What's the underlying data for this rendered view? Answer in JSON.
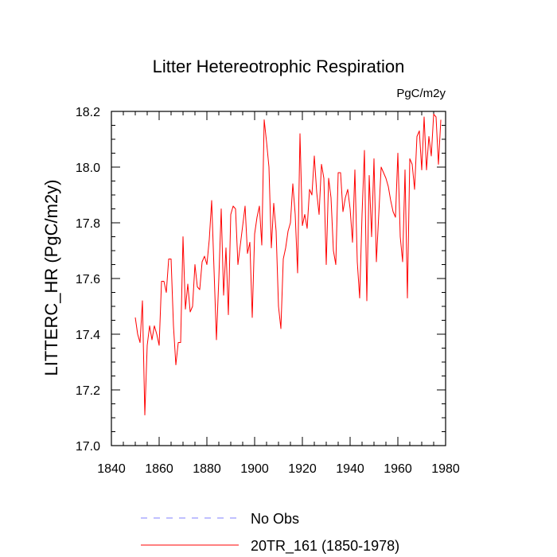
{
  "chart_data": {
    "type": "line",
    "title": "Litter Hetereotrophic Respiration",
    "units_label": "PgC/m2y",
    "xlabel": "",
    "ylabel": "LITTERC_HR  (PgC/m2y)",
    "xlim": [
      1840,
      1980
    ],
    "ylim": [
      17.0,
      18.2
    ],
    "x_ticks": [
      1840,
      1860,
      1880,
      1900,
      1920,
      1940,
      1960,
      1980
    ],
    "y_ticks": [
      17.0,
      17.2,
      17.4,
      17.6,
      17.8,
      18.0,
      18.2
    ],
    "x_minor_step": 5,
    "y_minor_step": 0.05,
    "grid": false,
    "legend_position": "bottom-center",
    "series": [
      {
        "name": "No Obs",
        "style": "dashed",
        "color": "#8080ff",
        "x": [],
        "values": []
      },
      {
        "name": "20TR_161 (1850-1978)",
        "style": "solid",
        "color": "#ff0000",
        "x": [
          1850,
          1851,
          1852,
          1853,
          1854,
          1855,
          1856,
          1857,
          1858,
          1859,
          1860,
          1861,
          1862,
          1863,
          1864,
          1865,
          1866,
          1867,
          1868,
          1869,
          1870,
          1871,
          1872,
          1873,
          1874,
          1875,
          1876,
          1877,
          1878,
          1879,
          1880,
          1881,
          1882,
          1883,
          1884,
          1885,
          1886,
          1887,
          1888,
          1889,
          1890,
          1891,
          1892,
          1893,
          1894,
          1895,
          1896,
          1897,
          1898,
          1899,
          1900,
          1901,
          1902,
          1903,
          1904,
          1905,
          1906,
          1907,
          1908,
          1909,
          1910,
          1911,
          1912,
          1913,
          1914,
          1915,
          1916,
          1917,
          1918,
          1919,
          1920,
          1921,
          1922,
          1923,
          1924,
          1925,
          1926,
          1927,
          1928,
          1929,
          1930,
          1931,
          1932,
          1933,
          1934,
          1935,
          1936,
          1937,
          1938,
          1939,
          1940,
          1941,
          1942,
          1943,
          1944,
          1945,
          1946,
          1947,
          1948,
          1949,
          1950,
          1951,
          1952,
          1953,
          1954,
          1955,
          1956,
          1957,
          1958,
          1959,
          1960,
          1961,
          1962,
          1963,
          1964,
          1965,
          1966,
          1967,
          1968,
          1969,
          1970,
          1971,
          1972,
          1973,
          1974,
          1975,
          1976,
          1977,
          1978
        ],
        "values": [
          17.46,
          17.4,
          17.37,
          17.52,
          17.11,
          17.36,
          17.43,
          17.38,
          17.43,
          17.4,
          17.36,
          17.59,
          17.59,
          17.55,
          17.67,
          17.67,
          17.43,
          17.29,
          17.37,
          17.37,
          17.75,
          17.49,
          17.58,
          17.48,
          17.5,
          17.65,
          17.57,
          17.56,
          17.66,
          17.68,
          17.65,
          17.74,
          17.88,
          17.63,
          17.38,
          17.6,
          17.85,
          17.54,
          17.71,
          17.47,
          17.83,
          17.86,
          17.85,
          17.65,
          17.72,
          17.79,
          17.86,
          17.69,
          17.73,
          17.46,
          17.76,
          17.82,
          17.86,
          17.72,
          18.17,
          18.09,
          18.0,
          17.71,
          17.87,
          17.77,
          17.5,
          17.42,
          17.67,
          17.71,
          17.77,
          17.8,
          17.94,
          17.83,
          17.62,
          18.12,
          17.79,
          17.83,
          17.78,
          17.92,
          17.9,
          18.04,
          17.91,
          17.83,
          18.01,
          17.96,
          17.65,
          17.96,
          17.89,
          17.7,
          17.65,
          17.98,
          17.98,
          17.84,
          17.89,
          17.92,
          17.85,
          17.73,
          17.99,
          17.66,
          17.53,
          17.83,
          18.06,
          17.52,
          17.97,
          17.75,
          18.03,
          17.66,
          17.83,
          18.0,
          17.98,
          17.96,
          17.93,
          17.88,
          17.84,
          17.82,
          18.05,
          17.75,
          17.66,
          17.99,
          17.53,
          18.03,
          18.01,
          17.92,
          18.11,
          18.13,
          17.99,
          18.18,
          17.99,
          18.11,
          18.04,
          18.19,
          18.18,
          18.01,
          18.17
        ]
      }
    ]
  }
}
